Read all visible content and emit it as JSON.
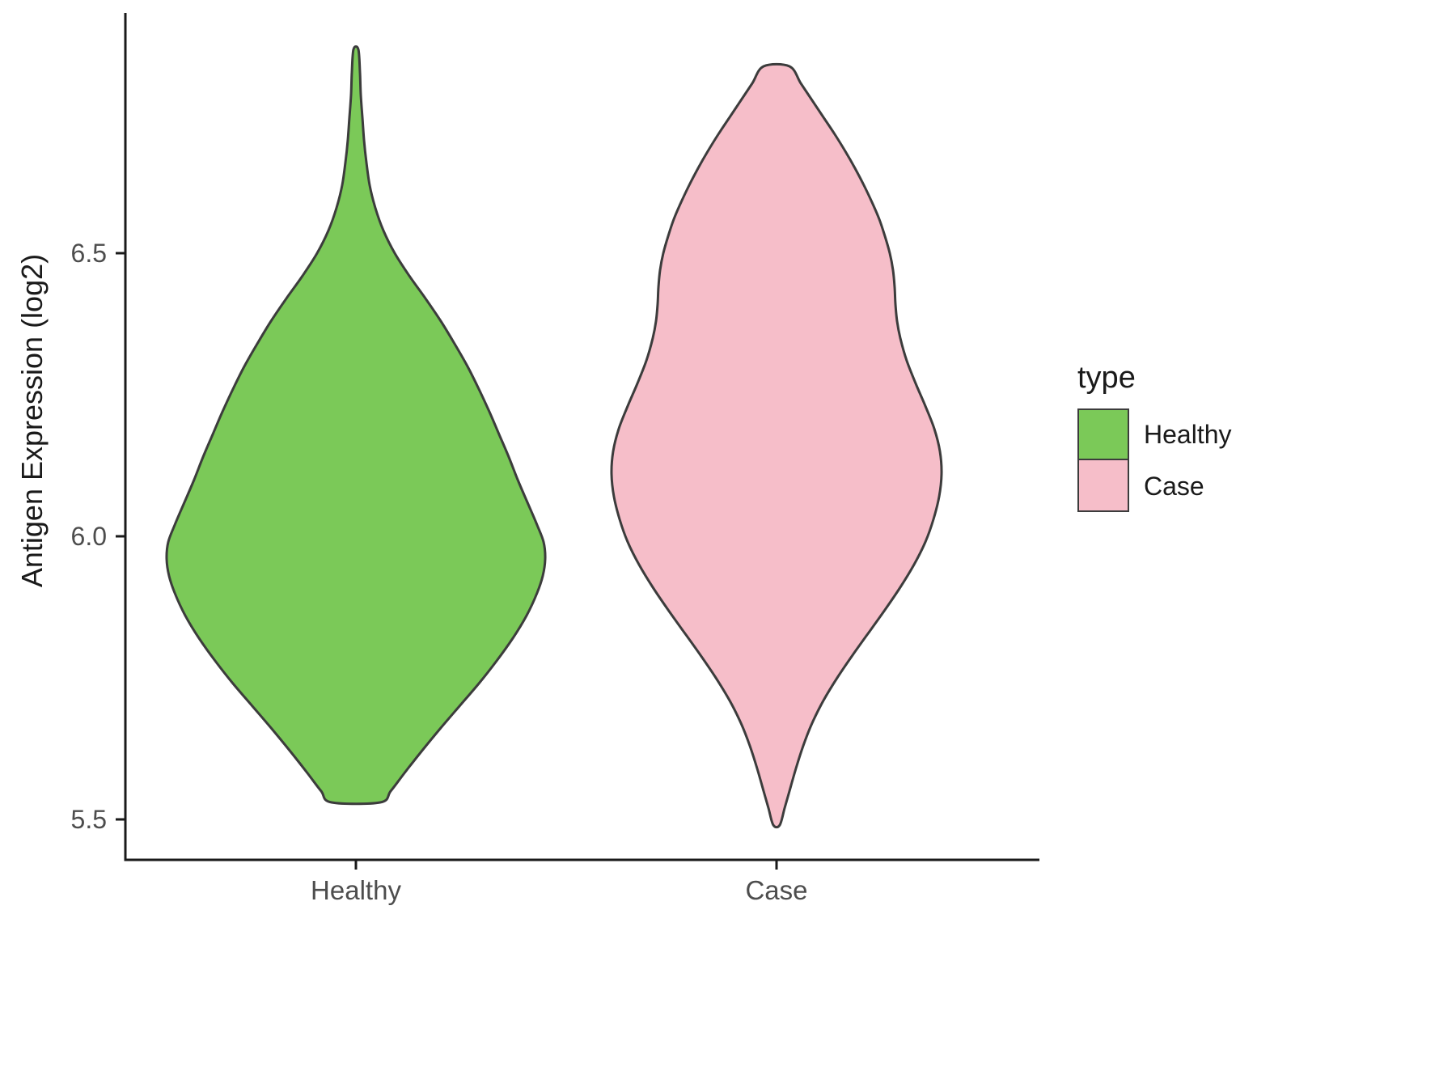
{
  "figure": {
    "y_axis_title": "Antigen Expression (log2)",
    "y_tick_labels": [
      "6.5",
      "6.0",
      "5.5"
    ],
    "x_category_labels": [
      "Healthy",
      "Case"
    ]
  },
  "chart_data": {
    "type": "violin",
    "title": "",
    "xlabel": "",
    "ylabel": "Antigen Expression (log2)",
    "categories": [
      "Healthy",
      "Case"
    ],
    "ylim": [
      5.4,
      6.95
    ],
    "yticks": [
      5.5,
      6.0,
      6.5
    ],
    "legend_title": "type",
    "legend_position": "right",
    "profile_units": "[expression_log2_value, density_halfwidth_px]",
    "series": [
      {
        "name": "Healthy",
        "fill": "#7bc958",
        "stroke": "#3c3c3c",
        "min": 5.53,
        "max": 6.86,
        "peak_value": 5.98,
        "profile": [
          [
            6.86,
            3
          ],
          [
            6.82,
            5
          ],
          [
            6.78,
            6
          ],
          [
            6.74,
            8
          ],
          [
            6.7,
            10
          ],
          [
            6.66,
            13
          ],
          [
            6.62,
            17
          ],
          [
            6.58,
            24
          ],
          [
            6.54,
            34
          ],
          [
            6.5,
            48
          ],
          [
            6.46,
            66
          ],
          [
            6.42,
            86
          ],
          [
            6.38,
            105
          ],
          [
            6.34,
            122
          ],
          [
            6.3,
            138
          ],
          [
            6.26,
            152
          ],
          [
            6.22,
            165
          ],
          [
            6.18,
            177
          ],
          [
            6.14,
            189
          ],
          [
            6.1,
            200
          ],
          [
            6.06,
            212
          ],
          [
            6.02,
            224
          ],
          [
            5.99,
            232
          ],
          [
            5.96,
            234
          ],
          [
            5.93,
            231
          ],
          [
            5.9,
            224
          ],
          [
            5.86,
            211
          ],
          [
            5.82,
            194
          ],
          [
            5.78,
            174
          ],
          [
            5.74,
            152
          ],
          [
            5.7,
            128
          ],
          [
            5.66,
            104
          ],
          [
            5.62,
            81
          ],
          [
            5.58,
            59
          ],
          [
            5.55,
            43
          ],
          [
            5.53,
            30
          ]
        ]
      },
      {
        "name": "Case",
        "fill": "#f6bec9",
        "stroke": "#3c3c3c",
        "min": 5.49,
        "max": 6.83,
        "peak_value": 6.13,
        "profile": [
          [
            6.83,
            16
          ],
          [
            6.8,
            30
          ],
          [
            6.77,
            44
          ],
          [
            6.74,
            58
          ],
          [
            6.71,
            72
          ],
          [
            6.68,
            85
          ],
          [
            6.65,
            97
          ],
          [
            6.62,
            108
          ],
          [
            6.59,
            118
          ],
          [
            6.56,
            127
          ],
          [
            6.53,
            134
          ],
          [
            6.5,
            140
          ],
          [
            6.47,
            144
          ],
          [
            6.44,
            146
          ],
          [
            6.41,
            147
          ],
          [
            6.38,
            149
          ],
          [
            6.35,
            153
          ],
          [
            6.31,
            161
          ],
          [
            6.27,
            172
          ],
          [
            6.23,
            184
          ],
          [
            6.19,
            195
          ],
          [
            6.15,
            202
          ],
          [
            6.11,
            204
          ],
          [
            6.07,
            201
          ],
          [
            6.03,
            194
          ],
          [
            5.99,
            184
          ],
          [
            5.95,
            170
          ],
          [
            5.91,
            153
          ],
          [
            5.87,
            134
          ],
          [
            5.83,
            114
          ],
          [
            5.79,
            94
          ],
          [
            5.75,
            75
          ],
          [
            5.71,
            58
          ],
          [
            5.67,
            44
          ],
          [
            5.63,
            33
          ],
          [
            5.59,
            24
          ],
          [
            5.55,
            16
          ],
          [
            5.52,
            10
          ],
          [
            5.49,
            4
          ]
        ]
      }
    ]
  }
}
